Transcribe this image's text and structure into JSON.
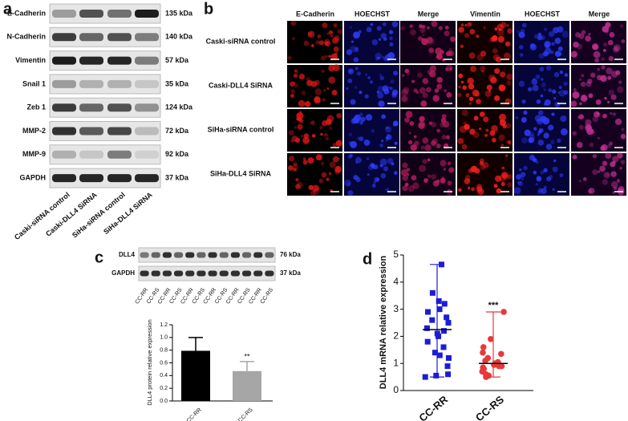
{
  "panel_a": {
    "label": "a",
    "blot_rows": [
      {
        "protein": "E-Cadherin",
        "size": "135 kDa"
      },
      {
        "protein": "N-Cadherin",
        "size": "140 kDa"
      },
      {
        "protein": "Vimentin",
        "size": "57 kDa"
      },
      {
        "protein": "Snail 1",
        "size": "35 kDa"
      },
      {
        "protein": "Zeb 1",
        "size": "124 kDa"
      },
      {
        "protein": "MMP-2",
        "size": "72 kDa"
      },
      {
        "protein": "MMP-9",
        "size": "92 kDa"
      },
      {
        "protein": "GAPDH",
        "size": "37 kDa"
      }
    ],
    "lanes": [
      "Caski-siRNA control",
      "Caski-DLL4 SiRNA",
      "SiHa-siRNA control",
      "SiHa-DLL4 SiRNA"
    ]
  },
  "panel_b": {
    "label": "b",
    "columns": [
      "E-Cadherin",
      "HOECHST",
      "Merge",
      "Vimentin",
      "HOECHST",
      "Merge"
    ],
    "rows": [
      "Caski-siRNA control",
      "Caski-DLL4 SiRNA",
      "SiHa-siRNA control",
      "SiHa-DLL4 SiRNA"
    ]
  },
  "panel_c_blot": {
    "label": "c",
    "blot_rows": [
      {
        "protein": "DLL4",
        "size": "76 kDa"
      },
      {
        "protein": "GAPDH",
        "size": "37 kDa"
      }
    ],
    "lanes": [
      "CC-RR",
      "CC-RS",
      "CC-RR",
      "CC-RS",
      "CC-RR",
      "CC-RS",
      "CC-RR",
      "CC-RS",
      "CC-RR",
      "CC-RS",
      "CC-RR",
      "CC-RS"
    ]
  },
  "chart_data": [
    {
      "type": "bar",
      "y_label": "DLL4 protein relative expression",
      "categories": [
        "CC-RR",
        "CC-RS"
      ],
      "values": [
        0.79,
        0.47
      ],
      "errors": [
        0.21,
        0.15
      ],
      "colors": [
        "#000000",
        "#a6a6a6"
      ],
      "annotation": "**",
      "ylim": [
        0,
        1.2
      ],
      "yticks": [
        {
          "value": 0,
          "label": "0.0"
        },
        0.2,
        0.4,
        0.6,
        0.8,
        {
          "value": 1,
          "label": "1.0"
        },
        1.2
      ]
    },
    {
      "type": "scatter",
      "label": "d",
      "y_label": "DLL4 mRNA relative expression",
      "categories": [
        "CC-RR",
        "CC-RS"
      ],
      "groups": [
        {
          "color": "#1c1cd8",
          "marker": "square",
          "values": [
            4.65,
            3.6,
            3.2,
            3.3,
            3.0,
            2.9,
            2.7,
            2.6,
            2.5,
            2.3,
            2.2,
            2.1,
            2.0,
            1.8,
            1.6,
            1.4,
            1.3,
            1.2,
            0.9,
            0.6,
            0.55,
            0.5
          ],
          "center": 2.25,
          "range": [
            0.5,
            4.65
          ]
        },
        {
          "color": "#e8383a",
          "marker": "circle",
          "values": [
            2.9,
            1.9,
            1.6,
            1.4,
            1.35,
            1.2,
            1.1,
            1.05,
            1.0,
            1.0,
            0.95,
            0.9,
            0.9,
            0.85,
            0.8,
            0.7,
            0.6,
            0.55,
            0.5
          ],
          "center": 1.0,
          "range": [
            0.5,
            2.9
          ]
        }
      ],
      "annotation": "***",
      "ylim": [
        0,
        5
      ],
      "yticks": [
        0,
        1,
        2,
        3,
        4,
        5
      ]
    }
  ]
}
